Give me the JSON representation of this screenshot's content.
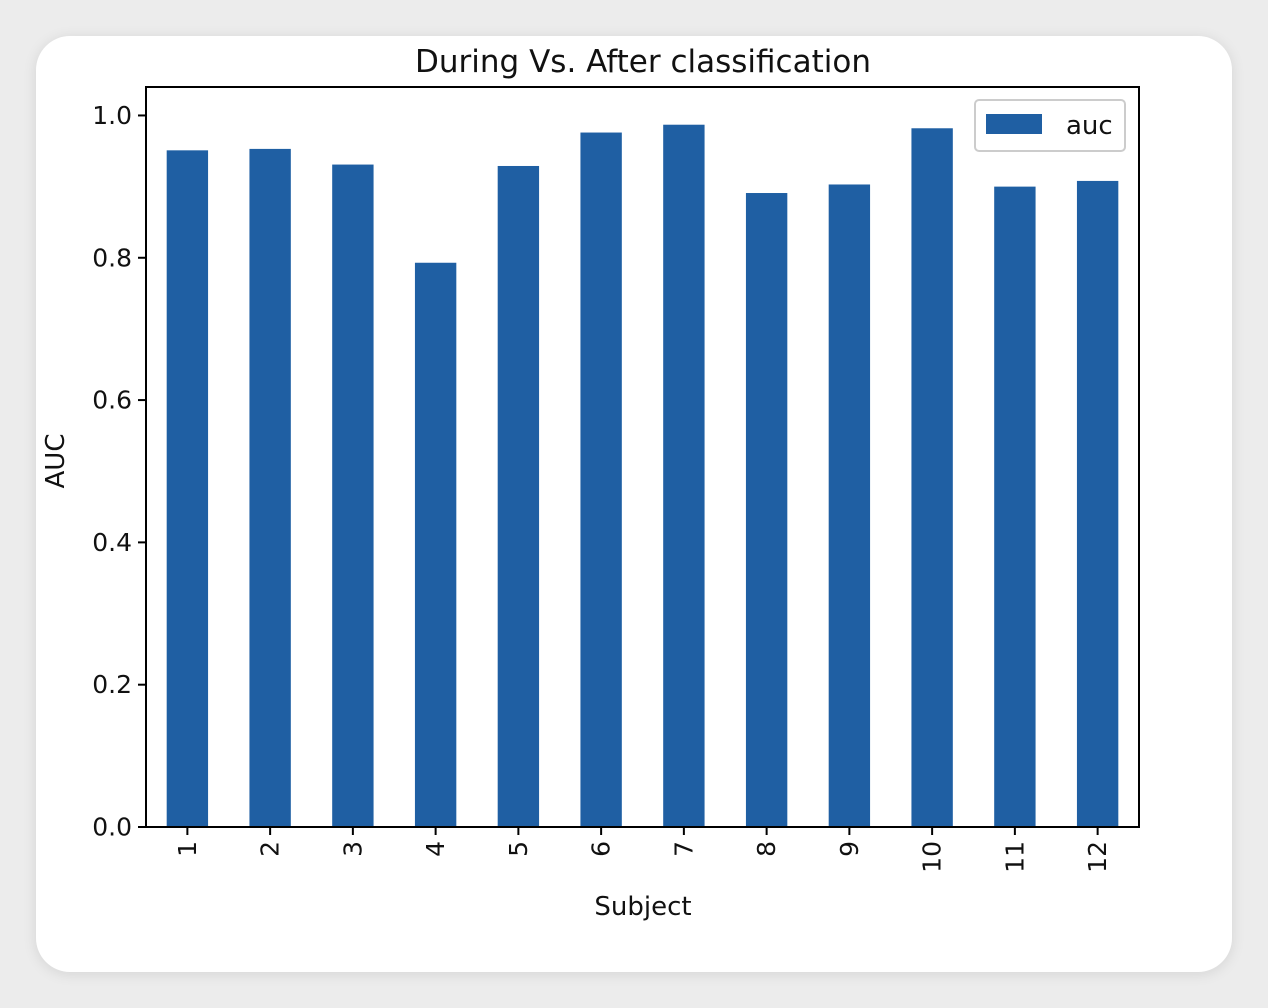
{
  "chart_data": {
    "type": "bar",
    "title": "During Vs. After classification",
    "xlabel": "Subject",
    "ylabel": "AUC",
    "categories": [
      "1",
      "2",
      "3",
      "4",
      "5",
      "6",
      "7",
      "8",
      "9",
      "10",
      "11",
      "12"
    ],
    "series": [
      {
        "name": "auc",
        "color": "#1f5fa3",
        "values": [
          0.951,
          0.953,
          0.931,
          0.793,
          0.929,
          0.976,
          0.987,
          0.891,
          0.903,
          0.982,
          0.9,
          0.908
        ]
      }
    ],
    "ylim": [
      0,
      1.04
    ],
    "yticks": [
      "0.0",
      "0.2",
      "0.4",
      "0.6",
      "0.8",
      "1.0"
    ],
    "grid": false,
    "legend_position": "top-right",
    "x_tick_rotation": "vertical"
  }
}
